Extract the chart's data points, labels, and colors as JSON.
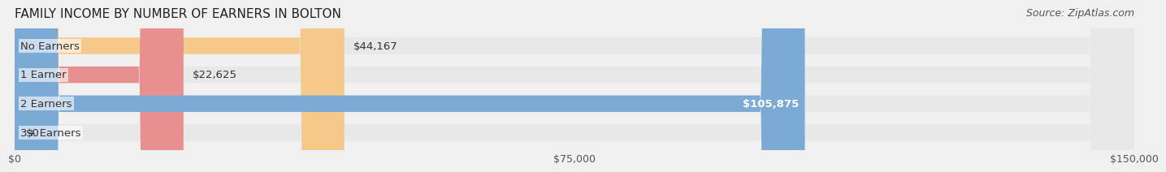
{
  "title": "FAMILY INCOME BY NUMBER OF EARNERS IN BOLTON",
  "source_text": "Source: ZipAtlas.com",
  "categories": [
    "No Earners",
    "1 Earner",
    "2 Earners",
    "3+ Earners"
  ],
  "values": [
    44167,
    22625,
    105875,
    0
  ],
  "bar_colors": [
    "#f5c98a",
    "#e89090",
    "#7baad4",
    "#c4aed4"
  ],
  "label_colors": [
    "#555555",
    "#555555",
    "#ffffff",
    "#555555"
  ],
  "value_labels": [
    "$44,167",
    "$22,625",
    "$105,875",
    "$0"
  ],
  "xlim": [
    0,
    150000
  ],
  "xtick_values": [
    0,
    75000,
    150000
  ],
  "xtick_labels": [
    "$0",
    "$75,000",
    "$150,000"
  ],
  "background_color": "#f0f0f0",
  "bar_background_color": "#e8e8e8",
  "title_fontsize": 11,
  "source_fontsize": 9,
  "label_fontsize": 9.5,
  "value_fontsize": 9.5,
  "bar_height": 0.55,
  "fig_width": 14.06,
  "fig_height": 2.34
}
